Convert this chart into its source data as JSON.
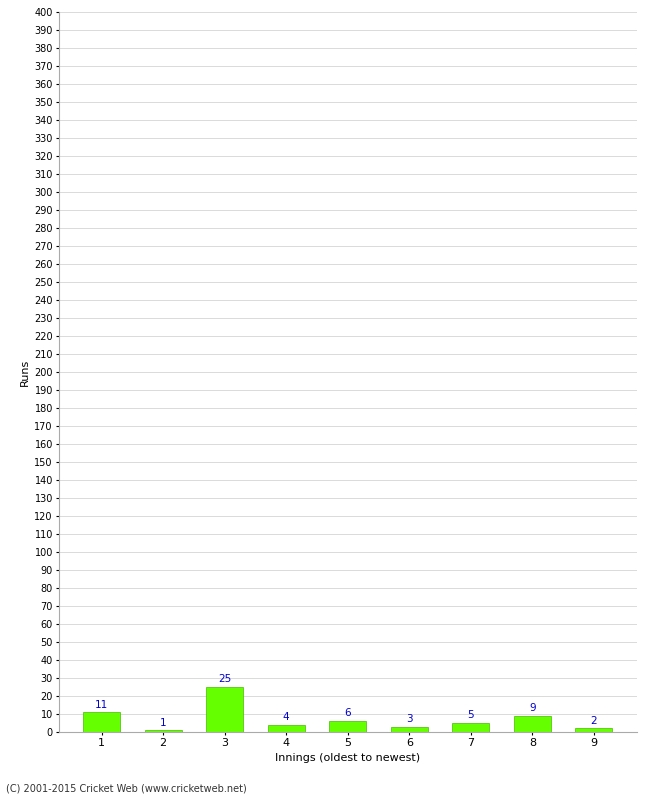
{
  "xlabel": "Innings (oldest to newest)",
  "ylabel": "Runs",
  "categories": [
    1,
    2,
    3,
    4,
    5,
    6,
    7,
    8,
    9
  ],
  "values": [
    11,
    1,
    25,
    4,
    6,
    3,
    5,
    9,
    2
  ],
  "bar_color": "#66ff00",
  "bar_edge_color": "#44bb00",
  "label_color": "#0000cc",
  "grid_color": "#cccccc",
  "background_color": "#ffffff",
  "ylim": [
    0,
    400
  ],
  "footer": "(C) 2001-2015 Cricket Web (www.cricketweb.net)"
}
